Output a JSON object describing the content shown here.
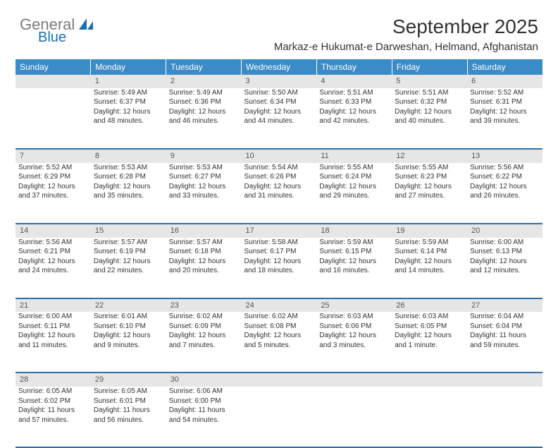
{
  "brand": {
    "part1": "General",
    "part2": "Blue"
  },
  "title": "September 2025",
  "subtitle": "Markaz-e Hukumat-e Darweshan, Helmand, Afghanistan",
  "colors": {
    "header_bg": "#3b8bc6",
    "header_text": "#ffffff",
    "daynum_bg": "#e6e6e6",
    "rule": "#2f6fa3",
    "body_bg": "#ffffff",
    "text": "#333333",
    "brand_gray": "#7b7b7b",
    "brand_blue": "#1a6fb0"
  },
  "day_headers": [
    "Sunday",
    "Monday",
    "Tuesday",
    "Wednesday",
    "Thursday",
    "Friday",
    "Saturday"
  ],
  "weeks": [
    {
      "nums": [
        "",
        "1",
        "2",
        "3",
        "4",
        "5",
        "6"
      ],
      "cells": [
        null,
        {
          "sr": "Sunrise: 5:49 AM",
          "ss": "Sunset: 6:37 PM",
          "d1": "Daylight: 12 hours",
          "d2": "and 48 minutes."
        },
        {
          "sr": "Sunrise: 5:49 AM",
          "ss": "Sunset: 6:36 PM",
          "d1": "Daylight: 12 hours",
          "d2": "and 46 minutes."
        },
        {
          "sr": "Sunrise: 5:50 AM",
          "ss": "Sunset: 6:34 PM",
          "d1": "Daylight: 12 hours",
          "d2": "and 44 minutes."
        },
        {
          "sr": "Sunrise: 5:51 AM",
          "ss": "Sunset: 6:33 PM",
          "d1": "Daylight: 12 hours",
          "d2": "and 42 minutes."
        },
        {
          "sr": "Sunrise: 5:51 AM",
          "ss": "Sunset: 6:32 PM",
          "d1": "Daylight: 12 hours",
          "d2": "and 40 minutes."
        },
        {
          "sr": "Sunrise: 5:52 AM",
          "ss": "Sunset: 6:31 PM",
          "d1": "Daylight: 12 hours",
          "d2": "and 39 minutes."
        }
      ]
    },
    {
      "nums": [
        "7",
        "8",
        "9",
        "10",
        "11",
        "12",
        "13"
      ],
      "cells": [
        {
          "sr": "Sunrise: 5:52 AM",
          "ss": "Sunset: 6:29 PM",
          "d1": "Daylight: 12 hours",
          "d2": "and 37 minutes."
        },
        {
          "sr": "Sunrise: 5:53 AM",
          "ss": "Sunset: 6:28 PM",
          "d1": "Daylight: 12 hours",
          "d2": "and 35 minutes."
        },
        {
          "sr": "Sunrise: 5:53 AM",
          "ss": "Sunset: 6:27 PM",
          "d1": "Daylight: 12 hours",
          "d2": "and 33 minutes."
        },
        {
          "sr": "Sunrise: 5:54 AM",
          "ss": "Sunset: 6:26 PM",
          "d1": "Daylight: 12 hours",
          "d2": "and 31 minutes."
        },
        {
          "sr": "Sunrise: 5:55 AM",
          "ss": "Sunset: 6:24 PM",
          "d1": "Daylight: 12 hours",
          "d2": "and 29 minutes."
        },
        {
          "sr": "Sunrise: 5:55 AM",
          "ss": "Sunset: 6:23 PM",
          "d1": "Daylight: 12 hours",
          "d2": "and 27 minutes."
        },
        {
          "sr": "Sunrise: 5:56 AM",
          "ss": "Sunset: 6:22 PM",
          "d1": "Daylight: 12 hours",
          "d2": "and 26 minutes."
        }
      ]
    },
    {
      "nums": [
        "14",
        "15",
        "16",
        "17",
        "18",
        "19",
        "20"
      ],
      "cells": [
        {
          "sr": "Sunrise: 5:56 AM",
          "ss": "Sunset: 6:21 PM",
          "d1": "Daylight: 12 hours",
          "d2": "and 24 minutes."
        },
        {
          "sr": "Sunrise: 5:57 AM",
          "ss": "Sunset: 6:19 PM",
          "d1": "Daylight: 12 hours",
          "d2": "and 22 minutes."
        },
        {
          "sr": "Sunrise: 5:57 AM",
          "ss": "Sunset: 6:18 PM",
          "d1": "Daylight: 12 hours",
          "d2": "and 20 minutes."
        },
        {
          "sr": "Sunrise: 5:58 AM",
          "ss": "Sunset: 6:17 PM",
          "d1": "Daylight: 12 hours",
          "d2": "and 18 minutes."
        },
        {
          "sr": "Sunrise: 5:59 AM",
          "ss": "Sunset: 6:15 PM",
          "d1": "Daylight: 12 hours",
          "d2": "and 16 minutes."
        },
        {
          "sr": "Sunrise: 5:59 AM",
          "ss": "Sunset: 6:14 PM",
          "d1": "Daylight: 12 hours",
          "d2": "and 14 minutes."
        },
        {
          "sr": "Sunrise: 6:00 AM",
          "ss": "Sunset: 6:13 PM",
          "d1": "Daylight: 12 hours",
          "d2": "and 12 minutes."
        }
      ]
    },
    {
      "nums": [
        "21",
        "22",
        "23",
        "24",
        "25",
        "26",
        "27"
      ],
      "cells": [
        {
          "sr": "Sunrise: 6:00 AM",
          "ss": "Sunset: 6:11 PM",
          "d1": "Daylight: 12 hours",
          "d2": "and 11 minutes."
        },
        {
          "sr": "Sunrise: 6:01 AM",
          "ss": "Sunset: 6:10 PM",
          "d1": "Daylight: 12 hours",
          "d2": "and 9 minutes."
        },
        {
          "sr": "Sunrise: 6:02 AM",
          "ss": "Sunset: 6:09 PM",
          "d1": "Daylight: 12 hours",
          "d2": "and 7 minutes."
        },
        {
          "sr": "Sunrise: 6:02 AM",
          "ss": "Sunset: 6:08 PM",
          "d1": "Daylight: 12 hours",
          "d2": "and 5 minutes."
        },
        {
          "sr": "Sunrise: 6:03 AM",
          "ss": "Sunset: 6:06 PM",
          "d1": "Daylight: 12 hours",
          "d2": "and 3 minutes."
        },
        {
          "sr": "Sunrise: 6:03 AM",
          "ss": "Sunset: 6:05 PM",
          "d1": "Daylight: 12 hours",
          "d2": "and 1 minute."
        },
        {
          "sr": "Sunrise: 6:04 AM",
          "ss": "Sunset: 6:04 PM",
          "d1": "Daylight: 11 hours",
          "d2": "and 59 minutes."
        }
      ]
    },
    {
      "nums": [
        "28",
        "29",
        "30",
        "",
        "",
        "",
        ""
      ],
      "cells": [
        {
          "sr": "Sunrise: 6:05 AM",
          "ss": "Sunset: 6:02 PM",
          "d1": "Daylight: 11 hours",
          "d2": "and 57 minutes."
        },
        {
          "sr": "Sunrise: 6:05 AM",
          "ss": "Sunset: 6:01 PM",
          "d1": "Daylight: 11 hours",
          "d2": "and 56 minutes."
        },
        {
          "sr": "Sunrise: 6:06 AM",
          "ss": "Sunset: 6:00 PM",
          "d1": "Daylight: 11 hours",
          "d2": "and 54 minutes."
        },
        null,
        null,
        null,
        null
      ]
    }
  ]
}
